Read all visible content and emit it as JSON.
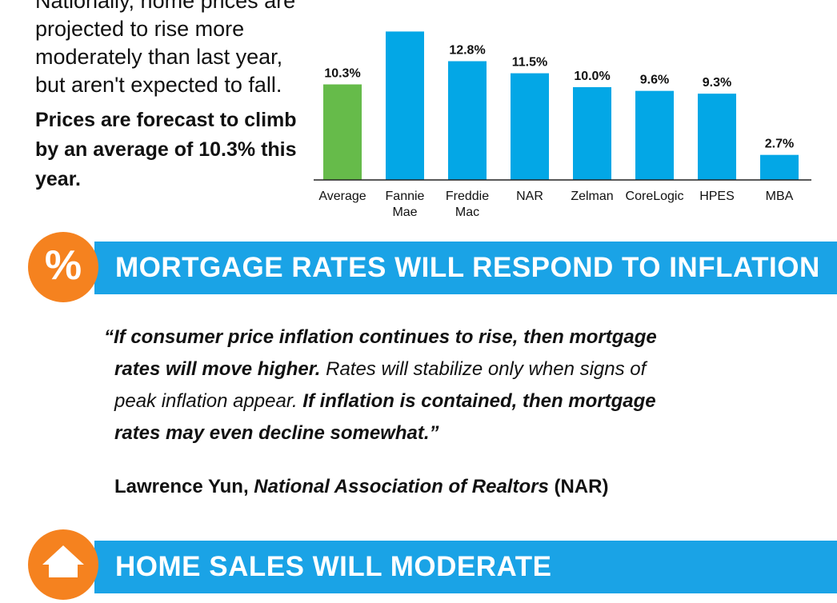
{
  "intro": {
    "text": "Nationally, home prices are projected to rise more moderately than last year, but aren't expected to fall.",
    "highlight": "Prices are forecast to climb by an average of 10.3% this year."
  },
  "chart_data": {
    "type": "bar",
    "categories": [
      "Average",
      "Fannie Mae",
      "Freddie Mac",
      "NAR",
      "Zelman",
      "CoreLogic",
      "HPES",
      "MBA"
    ],
    "category_lines": [
      [
        "Average"
      ],
      [
        "Fannie",
        "Mae"
      ],
      [
        "Freddie",
        "Mac"
      ],
      [
        "NAR"
      ],
      [
        "Zelman"
      ],
      [
        "CoreLogic"
      ],
      [
        "HPES"
      ],
      [
        "MBA"
      ]
    ],
    "values": [
      10.3,
      16.0,
      12.8,
      11.5,
      10.0,
      9.6,
      9.3,
      2.7
    ],
    "data_labels": [
      "10.3%",
      "",
      "12.8%",
      "11.5%",
      "10.0%",
      "9.6%",
      "9.3%",
      "2.7%"
    ],
    "title": "",
    "xlabel": "",
    "ylabel": "",
    "colors": {
      "highlight": "#66bb4a",
      "bar": "#03a7e6"
    },
    "grid": false
  },
  "section_mortgage": {
    "icon": "percent-icon",
    "symbol": "%",
    "title": "MORTGAGE RATES WILL RESPOND TO INFLATION",
    "quote": {
      "l1_bold": "“If consumer price inflation continues to rise, then mortgage",
      "l2_bold": "rates will move higher.",
      "l2_rest": " Rates will stabilize only when signs of",
      "l3_rest": "peak inflation appear. ",
      "l3_bold": "If inflation is contained, then mortgage",
      "l4_bold": "rates may even decline somewhat.”"
    },
    "attribution": {
      "name": "Lawrence Yun, ",
      "org": "National Association of Realtors",
      "abbr": " (NAR)"
    }
  },
  "section_sales": {
    "icon": "house-icon",
    "title": "HOME SALES WILL MODERATE"
  }
}
